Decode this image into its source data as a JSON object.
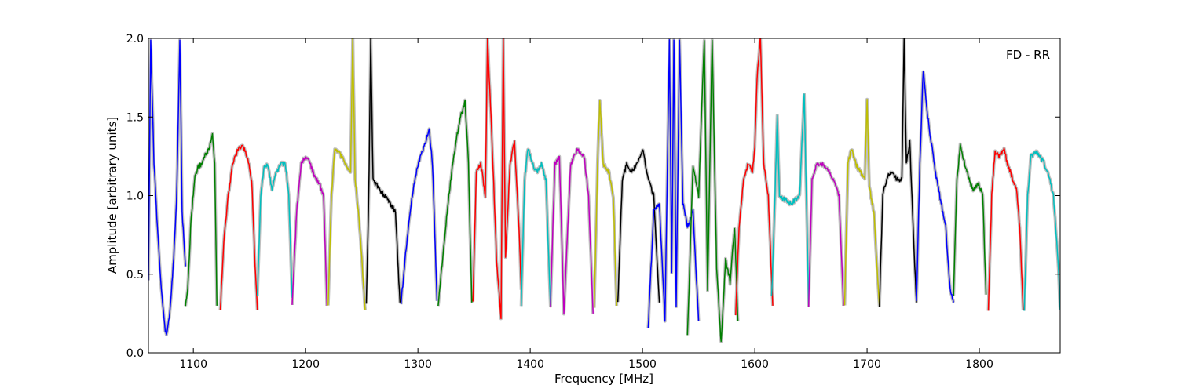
{
  "chart_data": {
    "type": "line",
    "title": "",
    "xlabel": "Frequency [MHz]",
    "ylabel": "Amplitude [arbitrary units]",
    "xlim": [
      1060,
      1872
    ],
    "ylim": [
      0.0,
      2.0
    ],
    "xticks": [
      1100,
      1200,
      1300,
      1400,
      1500,
      1600,
      1700,
      1800
    ],
    "xtick_labels": [
      "1100",
      "1200",
      "1300",
      "1400",
      "1500",
      "1600",
      "1700",
      "1800"
    ],
    "yticks": [
      0.0,
      0.5,
      1.0,
      1.5,
      2.0
    ],
    "ytick_labels": [
      "0.0",
      "0.5",
      "1.0",
      "1.5",
      "2.0"
    ],
    "annotation": "FD - RR",
    "grid": false,
    "background_color": "#bfbfbf",
    "series": [
      {
        "color": "#0000ff",
        "x": [
          1060,
          1062,
          1065,
          1068,
          1071,
          1074,
          1076,
          1079,
          1082,
          1085,
          1088,
          1090,
          1093
        ],
        "y": [
          0.45,
          2.0,
          1.2,
          0.8,
          0.45,
          0.2,
          0.1,
          0.25,
          0.55,
          0.95,
          2.0,
          0.9,
          0.55
        ]
      },
      {
        "color": "#008000",
        "x": [
          1093,
          1095,
          1098,
          1101,
          1104,
          1107,
          1110,
          1114,
          1117,
          1119,
          1121
        ],
        "y": [
          0.3,
          0.4,
          0.85,
          1.1,
          1.18,
          1.2,
          1.25,
          1.3,
          1.38,
          1.2,
          0.3
        ]
      },
      {
        "color": "#ff0000",
        "x": [
          1124,
          1127,
          1131,
          1135,
          1140,
          1144,
          1148,
          1152,
          1155,
          1157
        ],
        "y": [
          0.27,
          0.7,
          1.0,
          1.2,
          1.3,
          1.32,
          1.25,
          1.1,
          0.55,
          0.27
        ]
      },
      {
        "color": "#00bfbf",
        "x": [
          1157,
          1160,
          1163,
          1166,
          1170,
          1174,
          1178,
          1182,
          1185,
          1188
        ],
        "y": [
          0.35,
          1.0,
          1.18,
          1.2,
          1.05,
          1.15,
          1.2,
          1.2,
          1.0,
          0.35
        ]
      },
      {
        "color": "#bf00bf",
        "x": [
          1188,
          1192,
          1196,
          1200,
          1204,
          1208,
          1212,
          1216,
          1219
        ],
        "y": [
          0.3,
          0.9,
          1.2,
          1.25,
          1.2,
          1.12,
          1.08,
          1.0,
          0.3
        ]
      },
      {
        "color": "#bfbf00",
        "x": [
          1220,
          1223,
          1226,
          1230,
          1235,
          1240,
          1242,
          1244,
          1247,
          1250,
          1253
        ],
        "y": [
          0.3,
          1.0,
          1.3,
          1.28,
          1.2,
          1.15,
          2.0,
          1.1,
          0.9,
          0.6,
          0.27
        ]
      },
      {
        "color": "#000000",
        "x": [
          1254,
          1256,
          1258,
          1260,
          1265,
          1270,
          1275,
          1280,
          1284
        ],
        "y": [
          0.32,
          0.9,
          2.0,
          1.1,
          1.05,
          1.0,
          0.95,
          0.9,
          0.32
        ]
      },
      {
        "color": "#0000ff",
        "x": [
          1285,
          1290,
          1295,
          1300,
          1305,
          1310,
          1313,
          1317
        ],
        "y": [
          0.32,
          0.7,
          1.0,
          1.2,
          1.3,
          1.42,
          1.2,
          0.33
        ]
      },
      {
        "color": "#008000",
        "x": [
          1318,
          1322,
          1326,
          1330,
          1334,
          1338,
          1342,
          1345,
          1348
        ],
        "y": [
          0.3,
          0.6,
          0.9,
          1.15,
          1.35,
          1.5,
          1.6,
          1.2,
          0.32
        ]
      },
      {
        "color": "#ff0000",
        "x": [
          1349,
          1352,
          1356,
          1360,
          1362,
          1366,
          1370,
          1374,
          1376,
          1378,
          1382,
          1386,
          1390,
          1392
        ],
        "y": [
          0.32,
          1.15,
          1.2,
          1.0,
          2.0,
          1.35,
          0.6,
          0.22,
          2.0,
          0.6,
          1.2,
          1.35,
          0.8,
          0.4
        ]
      },
      {
        "color": "#00bfbf",
        "x": [
          1392,
          1395,
          1398,
          1402,
          1406,
          1410,
          1414,
          1418
        ],
        "y": [
          0.3,
          1.1,
          1.3,
          1.2,
          1.15,
          1.2,
          1.1,
          0.3
        ]
      },
      {
        "color": "#bf00bf",
        "x": [
          1418,
          1422,
          1426,
          1430,
          1436,
          1442,
          1448,
          1452,
          1456
        ],
        "y": [
          0.3,
          1.2,
          1.25,
          0.25,
          1.2,
          1.3,
          1.25,
          1.0,
          0.25
        ]
      },
      {
        "color": "#bfbf00",
        "x": [
          1457,
          1460,
          1462,
          1465,
          1470,
          1474,
          1477
        ],
        "y": [
          0.28,
          1.2,
          1.62,
          1.2,
          1.15,
          1.0,
          0.3
        ]
      },
      {
        "color": "#000000",
        "x": [
          1478,
          1482,
          1486,
          1490,
          1495,
          1500,
          1505,
          1510,
          1515
        ],
        "y": [
          0.32,
          1.1,
          1.2,
          1.15,
          1.2,
          1.3,
          1.1,
          1.0,
          0.32
        ]
      },
      {
        "color": "#0000ff",
        "x": [
          1505,
          1510,
          1515,
          1520,
          1524,
          1526,
          1528,
          1530,
          1533,
          1536,
          1540,
          1545,
          1550
        ],
        "y": [
          0.15,
          0.9,
          0.95,
          0.2,
          2.0,
          0.5,
          2.0,
          0.3,
          2.0,
          0.95,
          0.8,
          0.9,
          0.2
        ]
      },
      {
        "color": "#008000",
        "x": [
          1540,
          1545,
          1550,
          1555,
          1558,
          1562,
          1566,
          1570,
          1574,
          1578,
          1582,
          1585
        ],
        "y": [
          0.1,
          1.2,
          1.0,
          2.0,
          0.4,
          2.0,
          0.55,
          0.06,
          0.6,
          0.45,
          0.8,
          0.2
        ]
      },
      {
        "color": "#ff0000",
        "x": [
          1583,
          1586,
          1590,
          1594,
          1598,
          1600,
          1602,
          1605,
          1608,
          1612,
          1616
        ],
        "y": [
          0.25,
          0.8,
          1.1,
          1.2,
          1.15,
          1.3,
          1.75,
          2.0,
          1.2,
          1.0,
          0.3
        ]
      },
      {
        "color": "#00bfbf",
        "x": [
          1615,
          1618,
          1620,
          1622,
          1625,
          1628,
          1632,
          1636,
          1640,
          1644,
          1648
        ],
        "y": [
          0.35,
          1.0,
          1.5,
          1.0,
          0.98,
          0.97,
          0.95,
          0.97,
          1.0,
          1.65,
          0.3
        ]
      },
      {
        "color": "#bf00bf",
        "x": [
          1648,
          1651,
          1655,
          1660,
          1665,
          1670,
          1675,
          1679
        ],
        "y": [
          0.3,
          1.1,
          1.2,
          1.2,
          1.17,
          1.1,
          1.0,
          0.3
        ]
      },
      {
        "color": "#bfbf00",
        "x": [
          1680,
          1683,
          1686,
          1690,
          1694,
          1698,
          1700,
          1702,
          1706,
          1711
        ],
        "y": [
          0.3,
          1.2,
          1.3,
          1.2,
          1.15,
          1.1,
          1.6,
          1.05,
          0.9,
          0.3
        ]
      },
      {
        "color": "#000000",
        "x": [
          1711,
          1714,
          1718,
          1722,
          1727,
          1731,
          1733,
          1735,
          1738,
          1741,
          1744
        ],
        "y": [
          0.3,
          1.0,
          1.12,
          1.15,
          1.1,
          1.1,
          2.0,
          1.2,
          1.35,
          0.8,
          0.32
        ]
      },
      {
        "color": "#0000ff",
        "x": [
          1744,
          1747,
          1750,
          1754,
          1758,
          1762,
          1766,
          1770,
          1774,
          1777
        ],
        "y": [
          0.32,
          1.2,
          1.8,
          1.5,
          1.3,
          1.1,
          0.95,
          0.8,
          0.4,
          0.32
        ]
      },
      {
        "color": "#008000",
        "x": [
          1777,
          1780,
          1783,
          1787,
          1791,
          1795,
          1799,
          1803,
          1806
        ],
        "y": [
          0.37,
          1.1,
          1.32,
          1.2,
          1.1,
          1.03,
          1.08,
          1.0,
          0.37
        ]
      },
      {
        "color": "#ff0000",
        "x": [
          1808,
          1811,
          1814,
          1818,
          1822,
          1825,
          1829,
          1833,
          1836,
          1839
        ],
        "y": [
          0.27,
          1.0,
          1.28,
          1.25,
          1.3,
          1.2,
          1.12,
          1.05,
          0.8,
          0.27
        ]
      },
      {
        "color": "#00bfbf",
        "x": [
          1840,
          1843,
          1846,
          1850,
          1854,
          1858,
          1862,
          1866,
          1870,
          1872
        ],
        "y": [
          0.27,
          1.0,
          1.25,
          1.28,
          1.25,
          1.2,
          1.12,
          1.0,
          0.6,
          0.27
        ]
      }
    ]
  }
}
